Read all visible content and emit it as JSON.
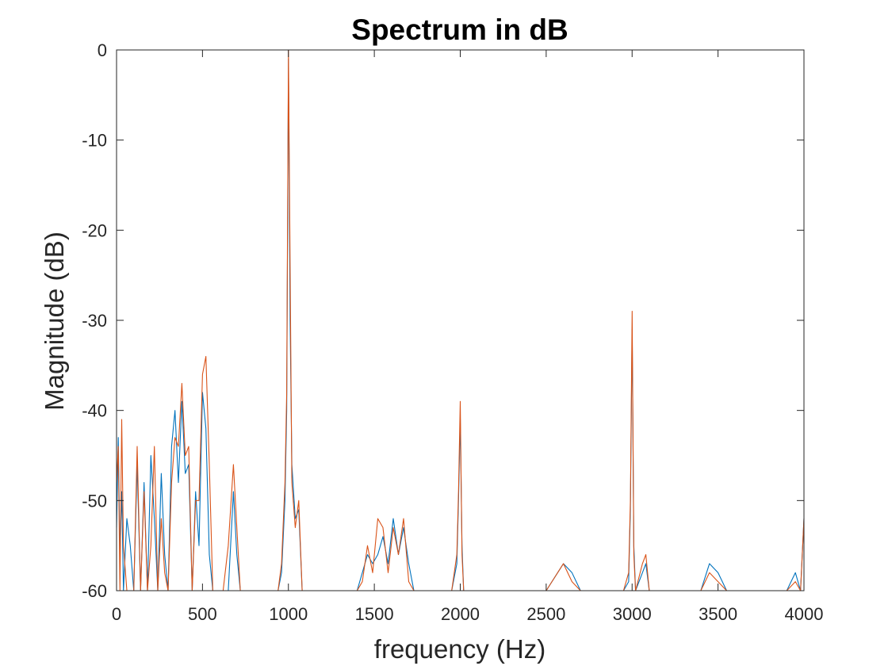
{
  "chart_data": {
    "type": "line",
    "title": "Spectrum in dB",
    "xlabel": "frequency (Hz)",
    "ylabel": "Magnitude (dB)",
    "xlim": [
      0,
      4000
    ],
    "ylim": [
      -60,
      0
    ],
    "x_ticks": [
      0,
      500,
      1000,
      1500,
      2000,
      2500,
      3000,
      3500,
      4000
    ],
    "x_tick_labels": [
      "0",
      "500",
      "1000",
      "1500",
      "2000",
      "2500",
      "3000",
      "3500",
      "4000"
    ],
    "y_ticks": [
      0,
      -10,
      -20,
      -30,
      -40,
      -50,
      -60
    ],
    "y_tick_labels": [
      "0",
      "-10",
      "-20",
      "-30",
      "-40",
      "-50",
      "-60"
    ],
    "grid": false,
    "legend": false,
    "series": [
      {
        "color": "#0072BD",
        "x": [
          0,
          10,
          20,
          30,
          40,
          60,
          80,
          100,
          120,
          140,
          160,
          180,
          200,
          220,
          240,
          260,
          280,
          300,
          320,
          340,
          360,
          380,
          400,
          420,
          440,
          460,
          480,
          500,
          520,
          540,
          560,
          580,
          600,
          620,
          650,
          680,
          700,
          720,
          750,
          800,
          860,
          900,
          940,
          960,
          980,
          990,
          1000,
          1010,
          1020,
          1040,
          1060,
          1080,
          1100,
          1150,
          1200,
          1300,
          1350,
          1380,
          1400,
          1430,
          1460,
          1490,
          1520,
          1550,
          1580,
          1610,
          1640,
          1670,
          1700,
          1730,
          1760,
          1800,
          1850,
          1900,
          1950,
          1980,
          1990,
          2000,
          2010,
          2020,
          2040,
          2100,
          2200,
          2300,
          2400,
          2500,
          2600,
          2650,
          2700,
          2750,
          2800,
          2850,
          2900,
          2950,
          2980,
          2990,
          3000,
          3010,
          3020,
          3060,
          3080,
          3100,
          3200,
          3300,
          3400,
          3450,
          3500,
          3550,
          3600,
          3700,
          3800,
          3850,
          3900,
          3950,
          3980,
          4000
        ],
        "values": [
          -53,
          -43,
          -56,
          -49,
          -60,
          -52,
          -55,
          -60,
          -46,
          -60,
          -48,
          -60,
          -45,
          -52,
          -60,
          -47,
          -56,
          -60,
          -44,
          -40,
          -48,
          -39,
          -47,
          -46,
          -60,
          -49,
          -55,
          -38,
          -42,
          -56,
          -60,
          -60,
          -60,
          -60,
          -60,
          -49,
          -56,
          -60,
          -60,
          -60,
          -60,
          -60,
          -60,
          -58,
          -50,
          -40,
          -1,
          -30,
          -46,
          -52,
          -51,
          -60,
          -60,
          -60,
          -60,
          -60,
          -60,
          -60,
          -60,
          -58,
          -56,
          -57,
          -56,
          -54,
          -57,
          -52,
          -56,
          -53,
          -57,
          -60,
          -60,
          -60,
          -60,
          -60,
          -60,
          -57,
          -50,
          -41,
          -55,
          -60,
          -60,
          -60,
          -60,
          -60,
          -60,
          -60,
          -57,
          -58,
          -60,
          -60,
          -60,
          -60,
          -60,
          -60,
          -59,
          -51,
          -31,
          -55,
          -60,
          -58,
          -57,
          -60,
          -60,
          -60,
          -60,
          -57,
          -58,
          -60,
          -60,
          -60,
          -60,
          -60,
          -60,
          -58,
          -60,
          -52
        ]
      },
      {
        "color": "#D95319",
        "x": [
          0,
          10,
          20,
          30,
          40,
          60,
          80,
          100,
          120,
          140,
          160,
          180,
          200,
          220,
          240,
          260,
          280,
          300,
          320,
          340,
          360,
          380,
          400,
          420,
          440,
          460,
          480,
          500,
          520,
          540,
          560,
          580,
          600,
          620,
          650,
          680,
          700,
          720,
          750,
          800,
          860,
          900,
          940,
          960,
          980,
          990,
          1000,
          1010,
          1020,
          1040,
          1060,
          1080,
          1100,
          1150,
          1200,
          1300,
          1350,
          1380,
          1400,
          1430,
          1460,
          1490,
          1520,
          1550,
          1580,
          1610,
          1640,
          1670,
          1700,
          1730,
          1760,
          1800,
          1850,
          1900,
          1950,
          1980,
          1990,
          2000,
          2010,
          2020,
          2040,
          2100,
          2200,
          2300,
          2400,
          2500,
          2600,
          2650,
          2700,
          2750,
          2800,
          2850,
          2900,
          2950,
          2980,
          2990,
          3000,
          3010,
          3020,
          3060,
          3080,
          3100,
          3200,
          3300,
          3400,
          3450,
          3500,
          3550,
          3600,
          3700,
          3800,
          3850,
          3900,
          3950,
          3980,
          4000
        ],
        "values": [
          -48,
          -44,
          -60,
          -41,
          -55,
          -60,
          -60,
          -60,
          -44,
          -60,
          -49,
          -60,
          -55,
          -44,
          -60,
          -52,
          -58,
          -60,
          -48,
          -43,
          -44,
          -37,
          -45,
          -44,
          -60,
          -50,
          -50,
          -36,
          -34,
          -46,
          -60,
          -60,
          -60,
          -60,
          -55,
          -46,
          -53,
          -60,
          -60,
          -60,
          -60,
          -60,
          -60,
          -57,
          -48,
          -38,
          0,
          -24,
          -48,
          -53,
          -50,
          -60,
          -60,
          -60,
          -60,
          -60,
          -60,
          -60,
          -60,
          -59,
          -55,
          -58,
          -52,
          -53,
          -58,
          -53,
          -56,
          -52,
          -59,
          -60,
          -60,
          -60,
          -60,
          -60,
          -60,
          -56,
          -49,
          -39,
          -56,
          -60,
          -60,
          -60,
          -60,
          -60,
          -60,
          -60,
          -57,
          -59,
          -60,
          -60,
          -60,
          -60,
          -60,
          -60,
          -58,
          -50,
          -29,
          -56,
          -60,
          -57,
          -56,
          -60,
          -60,
          -60,
          -60,
          -58,
          -59,
          -60,
          -60,
          -60,
          -60,
          -60,
          -60,
          -59,
          -60,
          -52
        ]
      }
    ]
  }
}
